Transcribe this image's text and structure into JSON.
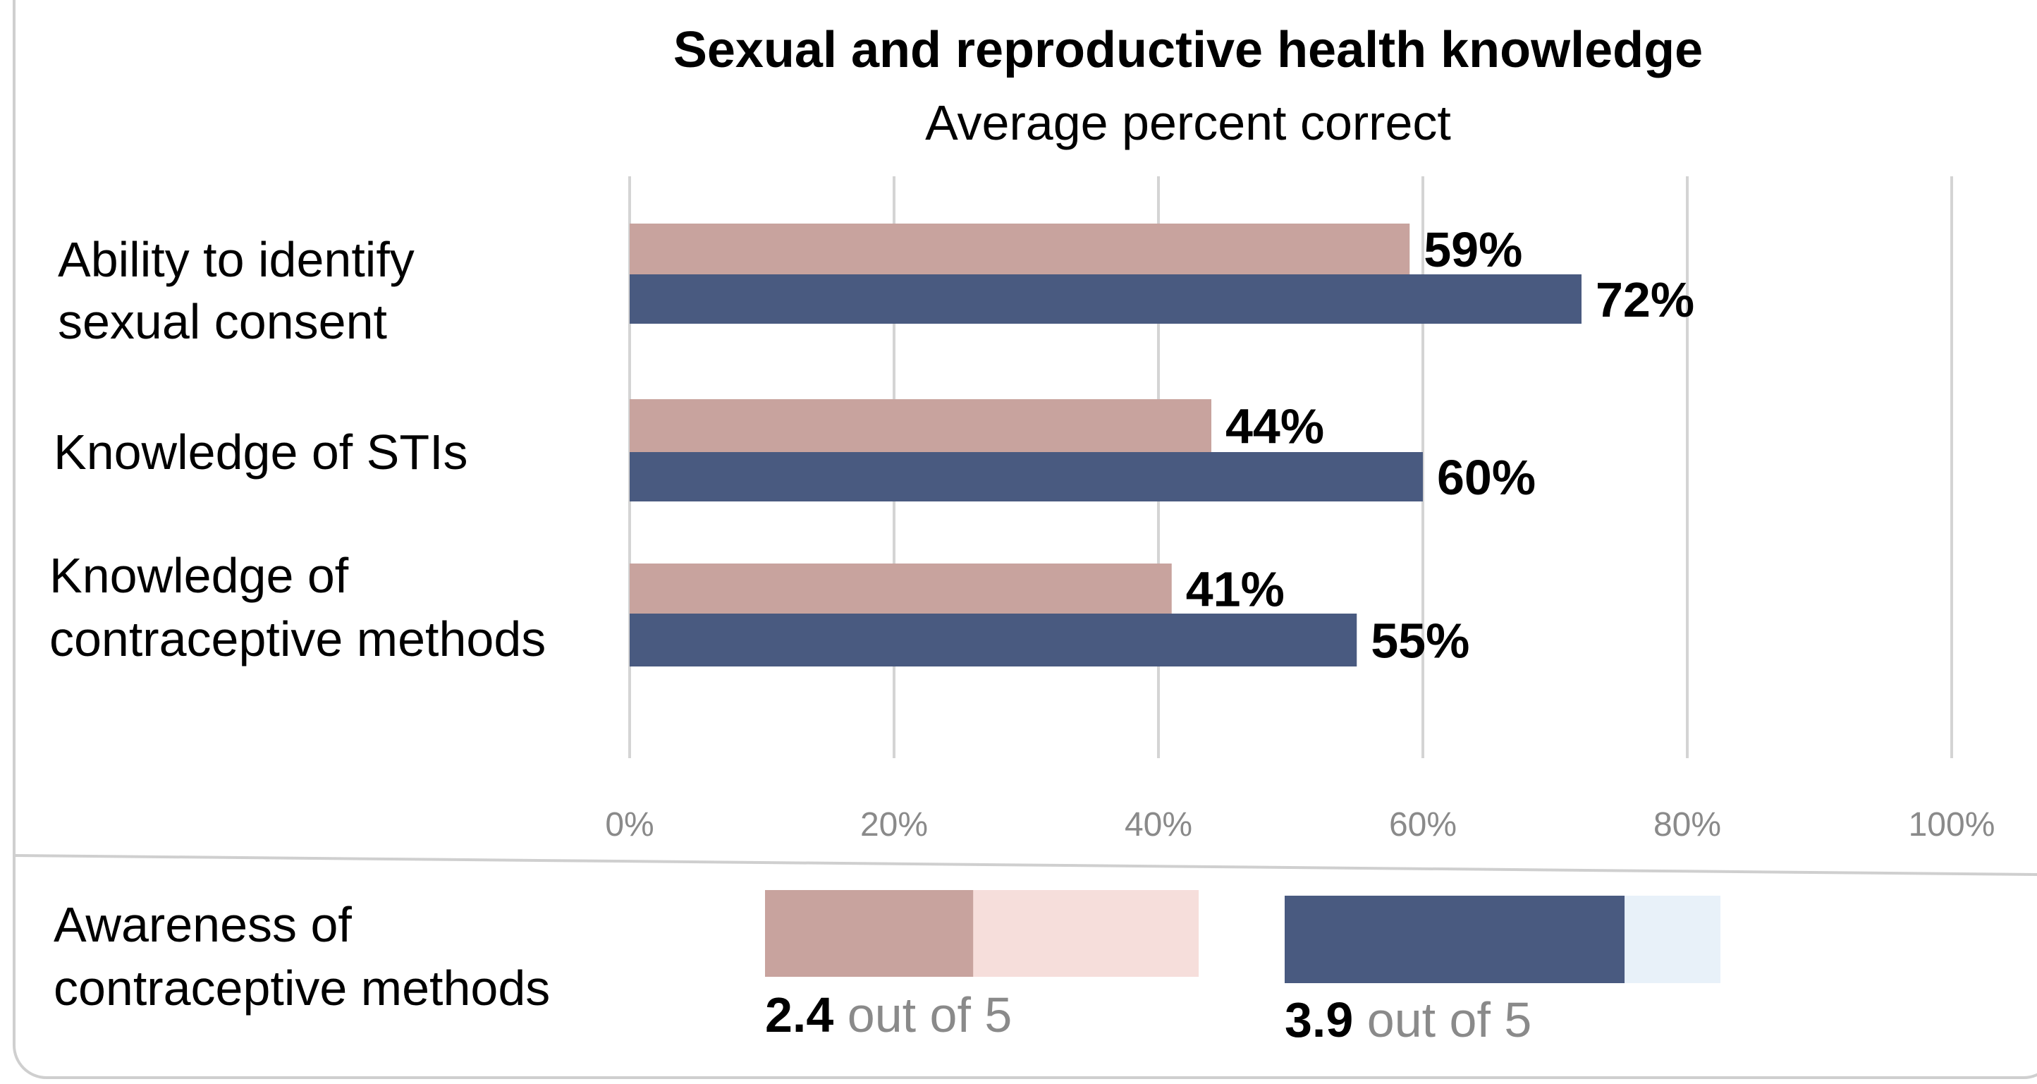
{
  "chart_data": {
    "type": "bar",
    "orientation": "horizontal",
    "title": "Sexual and reproductive health knowledge",
    "subtitle": "Average percent correct",
    "categories": [
      [
        "Ability to identify",
        "sexual consent"
      ],
      [
        "Knowledge of STIs"
      ],
      [
        "Knowledge of",
        "contraceptive methods"
      ]
    ],
    "series": [
      {
        "values": [
          59,
          44,
          41
        ],
        "labels": [
          "59%",
          "44%",
          "41%"
        ],
        "color": "#c8a39e"
      },
      {
        "values": [
          72,
          60,
          55
        ],
        "labels": [
          "72%",
          "60%",
          "55%"
        ],
        "color": "#495a80"
      }
    ],
    "xlim": [
      0,
      100
    ],
    "x_ticks": [
      "0%",
      "20%",
      "40%",
      "60%",
      "80%",
      "100%"
    ],
    "grid": true
  },
  "awareness": {
    "label": [
      "Awareness of",
      "contraceptive methods"
    ],
    "max": 5,
    "gauges": [
      {
        "value": 2.4,
        "value_text": "2.4",
        "suffix": " out of 5",
        "fill_color": "#c8a39e",
        "track_color": "#f6dedb"
      },
      {
        "value": 3.9,
        "value_text": "3.9",
        "suffix": " out of 5",
        "fill_color": "#495a80",
        "track_color": "#e8f1f9"
      }
    ]
  }
}
